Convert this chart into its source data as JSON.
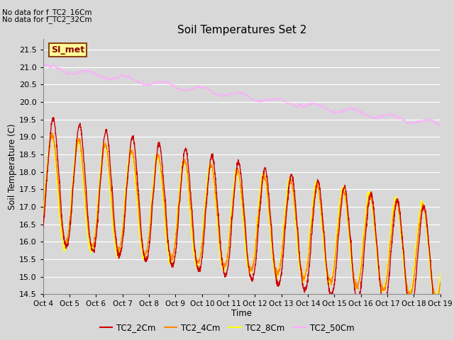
{
  "title": "Soil Temperatures Set 2",
  "ylabel": "Soil Temperature (C)",
  "xlabel": "Time",
  "ylim": [
    14.5,
    21.8
  ],
  "xlim": [
    0,
    15
  ],
  "x_tick_labels": [
    "Oct 4",
    "Oct 5",
    "Oct 6",
    "Oct 7",
    "Oct 8",
    "Oct 9",
    "Oct 10",
    "Oct 11",
    "Oct 12",
    "Oct 13",
    "Oct 14",
    "Oct 15",
    "Oct 16",
    "Oct 17",
    "Oct 18",
    "Oct 19"
  ],
  "yticks": [
    14.5,
    15.0,
    15.5,
    16.0,
    16.5,
    17.0,
    17.5,
    18.0,
    18.5,
    19.0,
    19.5,
    20.0,
    20.5,
    21.0,
    21.5
  ],
  "no_data_text1": "No data for f_TC2_16Cm",
  "no_data_text2": "No data for f_TC2_32Cm",
  "si_met_label": "SI_met",
  "colors": {
    "TC2_2Cm": "#cc0000",
    "TC2_4Cm": "#ff8800",
    "TC2_8Cm": "#ffff00",
    "TC2_50Cm": "#ffaaff"
  },
  "fig_bg_color": "#d8d8d8",
  "plot_bg_color": "#d8d8d8"
}
